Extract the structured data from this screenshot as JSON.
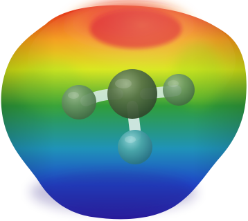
{
  "image": {
    "subject": "electrostatic-potential-surface-molecule",
    "background_color": "#ffffff",
    "surface_colors": {
      "high": "#e01e1e",
      "upper_mid": "#f39b16",
      "mid": "#d7e616",
      "neutral": "#2f9d3a",
      "lower_mid": "#1f93b8",
      "low": "#1f46c9",
      "lowest": "#2a1b9b"
    },
    "atom_colors": {
      "central": "#4f6f42",
      "side": "#5f8f5a",
      "bottom": "#4aa5a8",
      "bond": "#d9ece7"
    }
  }
}
